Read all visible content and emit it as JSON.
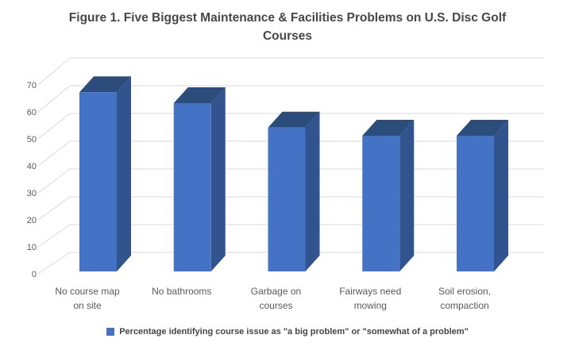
{
  "title": "Figure 1. Five Biggest Maintenance & Facilities Problems on U.S. Disc Golf Courses",
  "legend": {
    "marker_color": "#4472C4",
    "label": "Percentage identifying course issue as \"a big problem\" or \"somewhat of a problem\""
  },
  "chart_data": {
    "type": "bar",
    "style": "3d-column",
    "title": "Figure 1. Five Biggest Maintenance & Facilities Problems on U.S. Disc Golf Courses",
    "categories": [
      "No course map\non site",
      "No bathrooms",
      "Garbage on\ncourses",
      "Fairways need\nmowing",
      "Soil erosion,\ncompaction"
    ],
    "values": [
      66,
      62,
      53,
      50,
      50
    ],
    "series": [
      {
        "name": "Percentage identifying course issue as \"a big problem\" or \"somewhat of a problem\"",
        "values": [
          66,
          62,
          53,
          50,
          50
        ]
      }
    ],
    "xlabel": "",
    "ylabel": "",
    "ylim": [
      0,
      70
    ],
    "yticks": [
      0,
      10,
      20,
      30,
      40,
      50,
      60,
      70
    ],
    "grid": true,
    "legend_position": "bottom",
    "colors": {
      "bar_front": "#4472C4",
      "bar_top": "#2C4C7C",
      "bar_side": "#31548E",
      "gridline": "#D9D9D9",
      "axis_text": "#595959",
      "title_text": "#474747"
    }
  }
}
